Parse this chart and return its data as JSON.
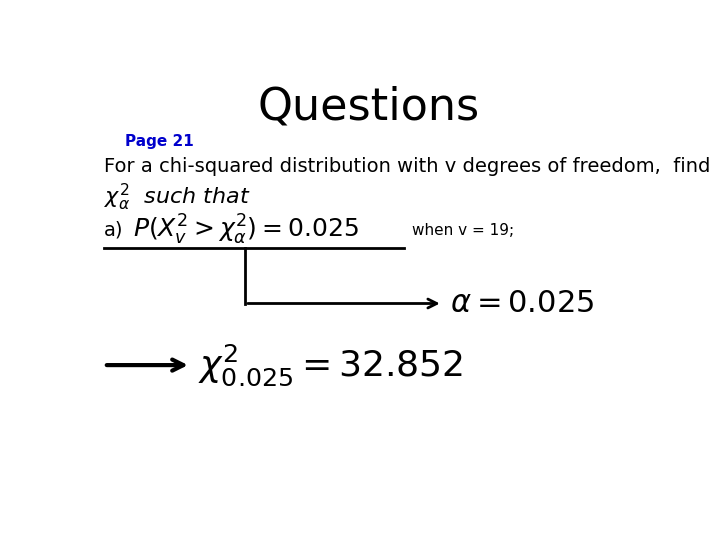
{
  "title": "Questions",
  "title_fontsize": 32,
  "title_color": "#000000",
  "page_label": "Page 21",
  "page_label_color": "#0000CC",
  "page_label_fontsize": 11,
  "bg_color": "#ffffff",
  "line1": "For a chi-squared distribution with v degrees of freedom,  find",
  "line1_fontsize": 14,
  "chi_alpha_label": "$\\chi^2_{\\alpha}$  such that",
  "chi_alpha_fontsize": 16,
  "part_a_label": "a)",
  "part_a_fontsize": 14,
  "formula_a": "$P(X^2_v > \\chi^2_{\\alpha}) = 0.025$",
  "formula_a_fontsize": 18,
  "when_v": "when v = 19;",
  "when_v_fontsize": 11,
  "alpha_result": "$\\alpha = 0.025$",
  "alpha_result_fontsize": 22,
  "chi_result": "$\\chi^2_{0.025} = 32.852$",
  "chi_result_fontsize": 26,
  "line_color": "#000000",
  "line_lw": 2.0,
  "arrow_lw": 3.0
}
